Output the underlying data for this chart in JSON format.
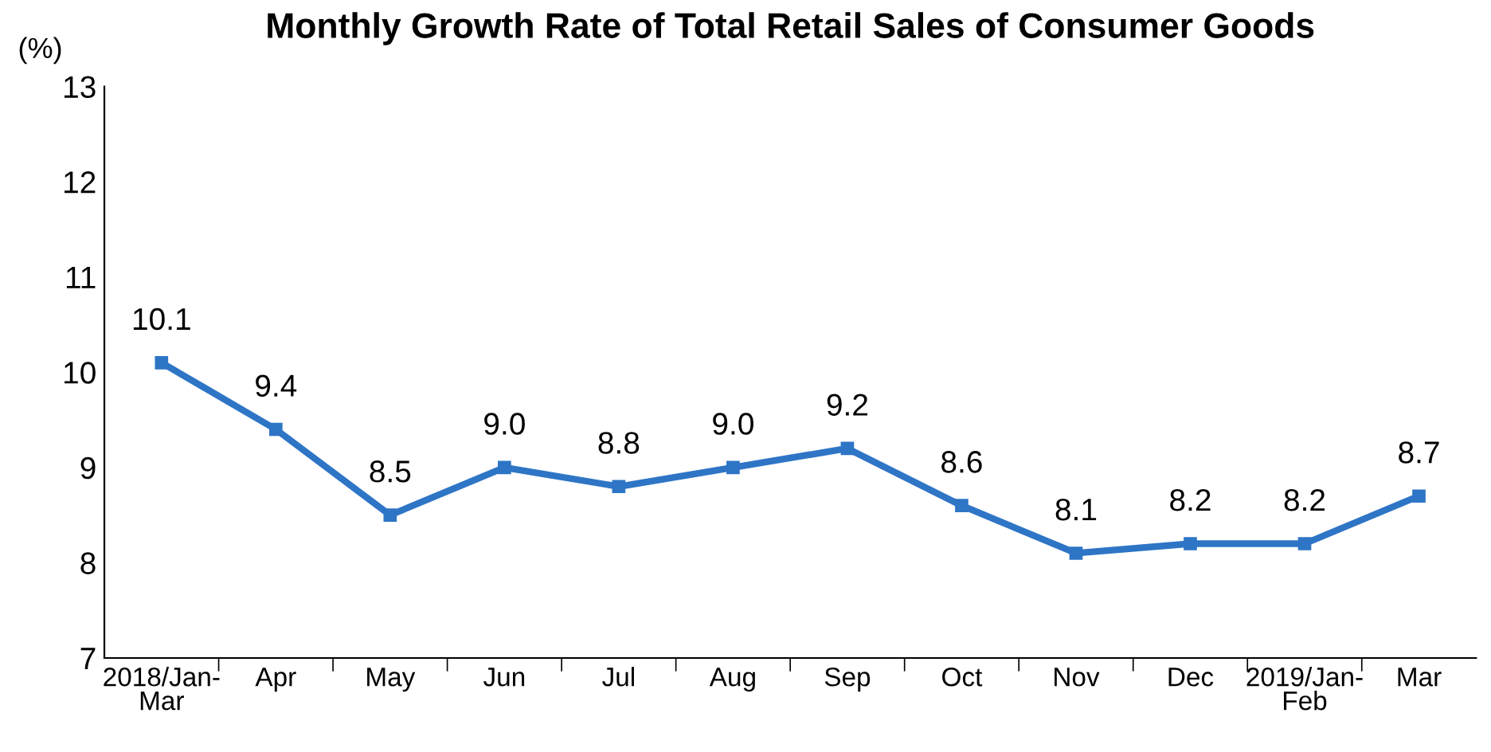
{
  "chart_data": {
    "type": "line",
    "title": "Monthly Growth Rate of Total Retail Sales of Consumer Goods",
    "ylabel": "(%)",
    "categories": [
      "2018/Jan-\nMar",
      "Apr",
      "May",
      "Jun",
      "Jul",
      "Aug",
      "Sep",
      "Oct",
      "Nov",
      "Dec",
      "2019/Jan-\nFeb",
      "Mar"
    ],
    "series": [
      {
        "color": "#2e75c6",
        "values": [
          10.1,
          9.4,
          8.5,
          9.0,
          8.8,
          9.0,
          9.2,
          8.6,
          8.1,
          8.2,
          8.2,
          8.7
        ],
        "value_labels": [
          "10.1",
          "9.4",
          "8.5",
          "9.0",
          "8.8",
          "9.0",
          "9.2",
          "8.6",
          "8.1",
          "8.2",
          "8.2",
          "8.7"
        ]
      }
    ],
    "ylim": [
      7,
      13
    ],
    "yticks": [
      7,
      8,
      9,
      10,
      11,
      12,
      13
    ],
    "grid": false,
    "legend": false,
    "marker": "square",
    "line_style": "solid"
  }
}
